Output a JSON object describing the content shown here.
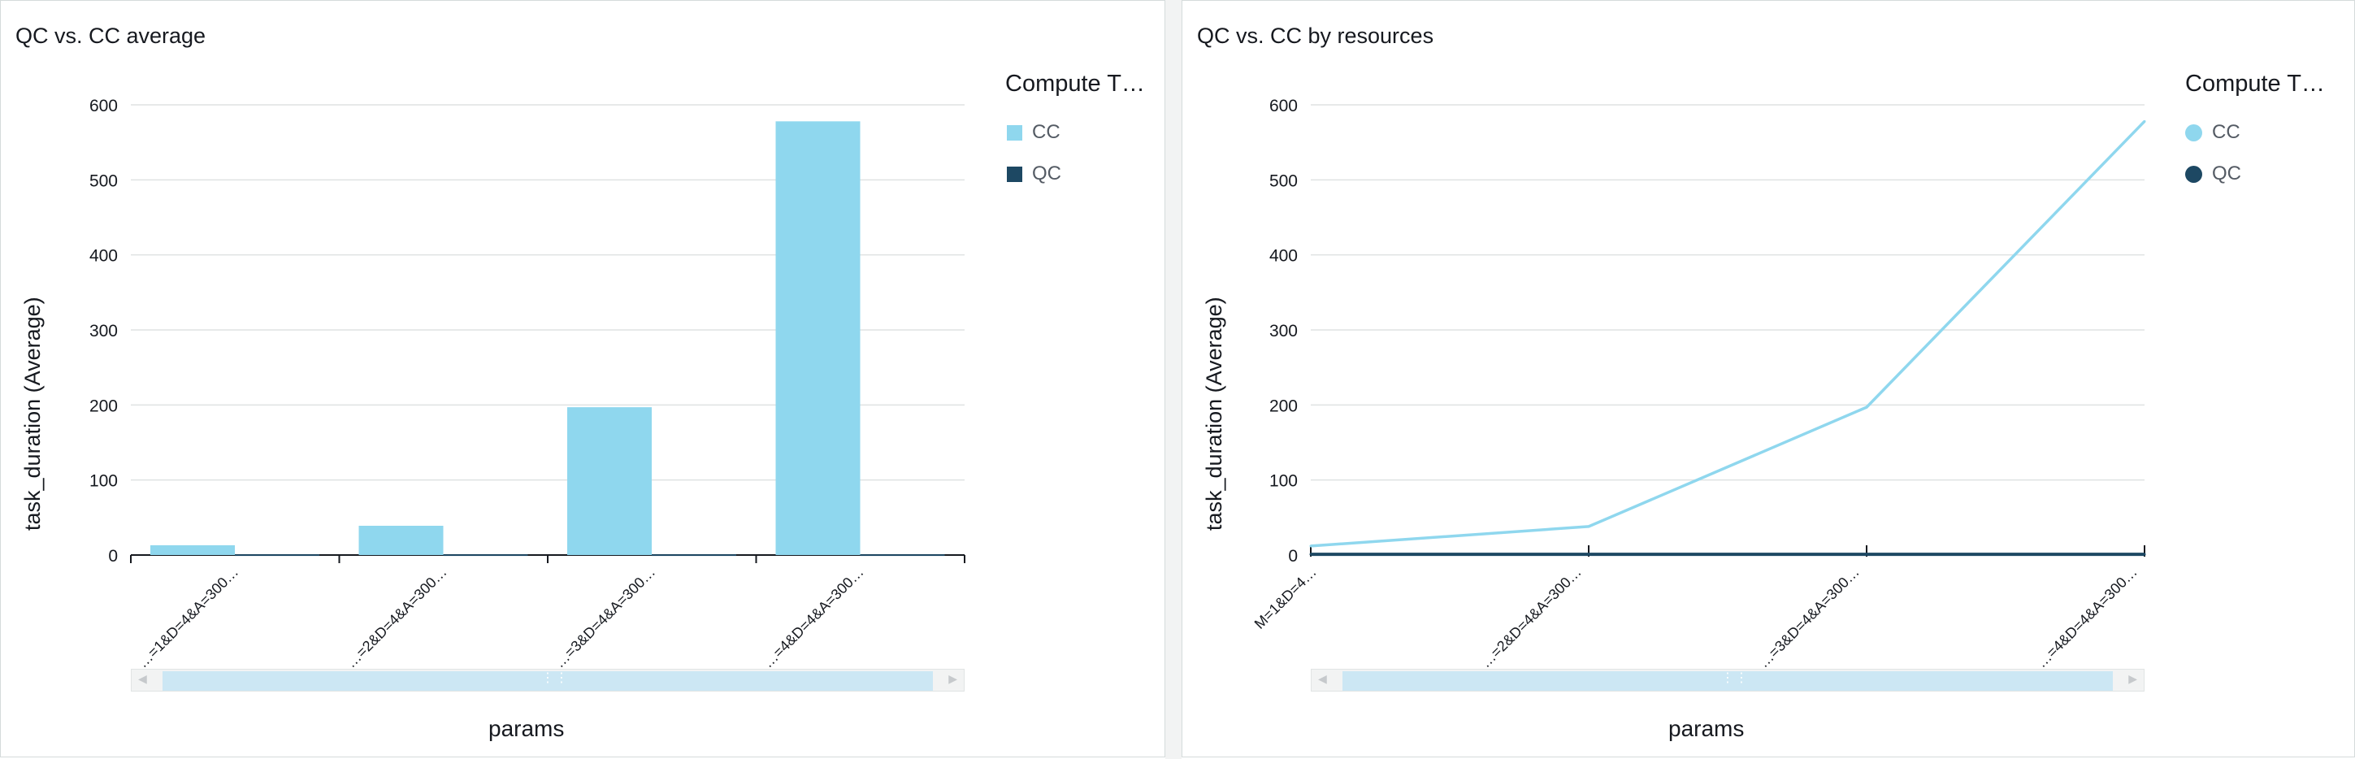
{
  "panels": [
    {
      "title": "QC vs. CC average",
      "legend_title": "Compute T…",
      "legend": [
        {
          "label": "CC",
          "color": "#8fd7ee"
        },
        {
          "label": "QC",
          "color": "#1d4863"
        }
      ],
      "xlabel": "params",
      "ylabel": "task_duration (Average)"
    },
    {
      "title": "QC vs. CC by resources",
      "legend_title": "Compute T…",
      "legend": [
        {
          "label": "CC",
          "color": "#8fd7ee"
        },
        {
          "label": "QC",
          "color": "#1d4863"
        }
      ],
      "xlabel": "params",
      "ylabel": "task_duration (Average)"
    }
  ],
  "chart_data": [
    {
      "type": "bar",
      "title": "QC vs. CC average",
      "categories": [
        "M=1&D=4&A=300…",
        "M=2&D=4&A=300…",
        "M=3&D=4&A=300…",
        "M=4&D=4&A=300…"
      ],
      "category_labels_shown": [
        "…=1&D=4&A=300…",
        "…=2&D=4&A=300…",
        "…=3&D=4&A=300…",
        "…=4&D=4&A=300…"
      ],
      "series": [
        {
          "name": "CC",
          "color": "#8fd7ee",
          "values": [
            13,
            39,
            197,
            578
          ]
        },
        {
          "name": "QC",
          "color": "#1d4863",
          "values": [
            1,
            1,
            1,
            1
          ]
        }
      ],
      "xlabel": "params",
      "ylabel": "task_duration (Average)",
      "ylim": [
        0,
        600
      ],
      "yticks": [
        0,
        100,
        200,
        300,
        400,
        500,
        600
      ],
      "grid": true,
      "legend_title": "Compute T…",
      "legend_position": "right"
    },
    {
      "type": "line",
      "title": "QC vs. CC by resources",
      "categories": [
        "M=1&D=4&A=300…",
        "M=2&D=4&A=300…",
        "M=3&D=4&A=300…",
        "M=4&D=4&A=300…"
      ],
      "category_labels_shown": [
        "M=1&D=4…",
        "…=2&D=4&A=300…",
        "…=3&D=4&A=300…",
        "…=4&D=4&A=300…"
      ],
      "series": [
        {
          "name": "CC",
          "color": "#8fd7ee",
          "values": [
            12,
            38,
            197,
            578
          ]
        },
        {
          "name": "QC",
          "color": "#1d4863",
          "values": [
            1,
            1,
            1,
            1
          ]
        }
      ],
      "xlabel": "params",
      "ylabel": "task_duration (Average)",
      "ylim": [
        0,
        600
      ],
      "yticks": [
        0,
        100,
        200,
        300,
        400,
        500,
        600
      ],
      "grid": true,
      "legend_title": "Compute T…",
      "legend_position": "right"
    }
  ]
}
